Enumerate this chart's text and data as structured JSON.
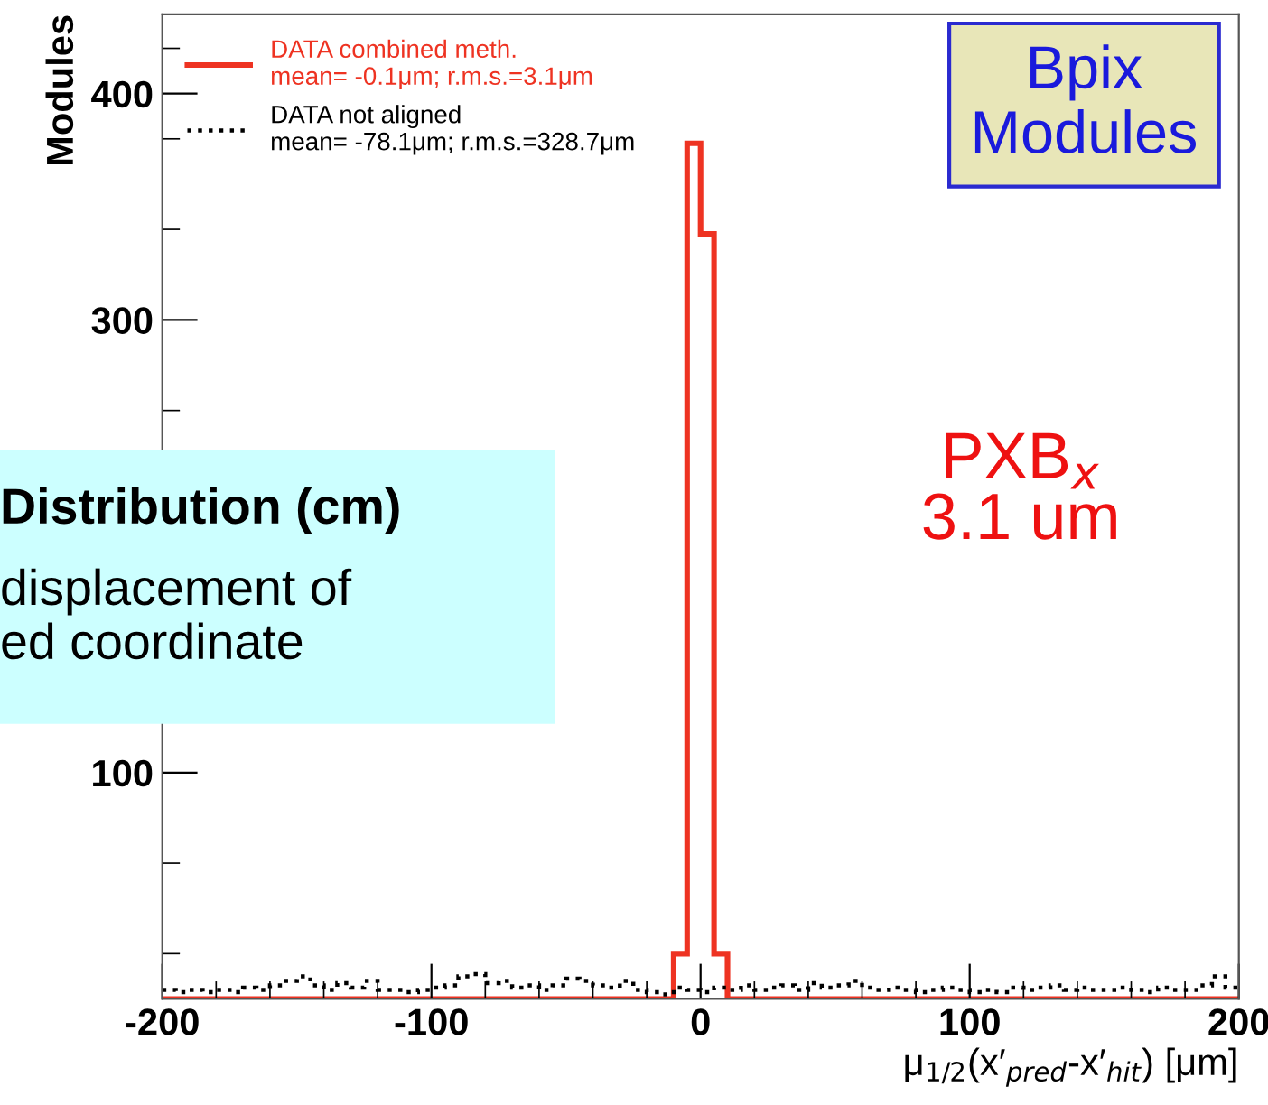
{
  "chart_data": {
    "type": "histogram",
    "xlabel": "μ$_{1/2}$(x′$_{pred}$-x′$_{hit}$) [μm]",
    "ylabel": "Modules",
    "bins": [
      -200,
      -195,
      -190,
      -185,
      -180,
      -175,
      -170,
      -165,
      -160,
      -155,
      -150,
      -145,
      -140,
      -135,
      -130,
      -125,
      -120,
      -115,
      -110,
      -105,
      -100,
      -95,
      -90,
      -85,
      -80,
      -75,
      -70,
      -65,
      -60,
      -55,
      -50,
      -45,
      -40,
      -35,
      -30,
      -25,
      -20,
      -15,
      -10,
      -5,
      0,
      5,
      10,
      15,
      20,
      25,
      30,
      35,
      40,
      45,
      50,
      55,
      60,
      65,
      70,
      75,
      80,
      85,
      90,
      95,
      100,
      105,
      110,
      115,
      120,
      125,
      130,
      135,
      140,
      145,
      150,
      155,
      160,
      165,
      170,
      175,
      180,
      185,
      190,
      195,
      200
    ],
    "series": [
      {
        "name": "DATA combined meth.\nmean= -0.1μm; r.m.s.=3.1μm",
        "color": "#ee3322",
        "line_style": "solid",
        "values": [
          0,
          0,
          0,
          0,
          0,
          0,
          0,
          0,
          0,
          0,
          0,
          0,
          0,
          0,
          0,
          0,
          0,
          0,
          0,
          0,
          0,
          0,
          0,
          0,
          0,
          0,
          0,
          0,
          0,
          0,
          0,
          0,
          0,
          0,
          0,
          0,
          0,
          0,
          20,
          378,
          338,
          20,
          0,
          0,
          0,
          0,
          0,
          0,
          0,
          0,
          0,
          0,
          0,
          0,
          0,
          0,
          0,
          0,
          0,
          0,
          0,
          0,
          0,
          0,
          0,
          0,
          0,
          0,
          0,
          0,
          0,
          0,
          0,
          0,
          0,
          0,
          0,
          0,
          0,
          0
        ]
      },
      {
        "name": "DATA not aligned\nmean= -78.1μm; r.m.s.=328.7μm",
        "color": "#000000",
        "line_style": "dotted",
        "values": [
          4,
          3,
          4,
          3,
          4,
          3,
          5,
          4,
          6,
          8,
          10,
          6,
          4,
          7,
          5,
          8,
          4,
          4,
          3,
          4,
          5,
          6,
          10,
          11,
          7,
          8,
          5,
          6,
          4,
          6,
          9,
          8,
          6,
          5,
          8,
          4,
          3,
          2,
          5,
          4,
          3,
          5,
          4,
          6,
          4,
          5,
          6,
          4,
          7,
          5,
          6,
          8,
          5,
          4,
          5,
          4,
          3,
          4,
          5,
          4,
          3,
          4,
          3,
          5,
          4,
          5,
          6,
          4,
          5,
          4,
          4,
          5,
          4,
          3,
          5,
          4,
          4,
          6,
          10,
          5
        ]
      }
    ],
    "xlim": [
      -200,
      200
    ],
    "xticks": [
      -200,
      -100,
      0,
      100,
      200
    ],
    "ylim": [
      0,
      435
    ],
    "yticks": [
      100,
      300,
      400
    ],
    "legend": "top left",
    "grid": false,
    "annotations": [
      "Bpix\nModules",
      "PXB$_{x}$\n3.1 um",
      "Distribution (cm)",
      "displacement of\ned coordinate"
    ]
  }
}
